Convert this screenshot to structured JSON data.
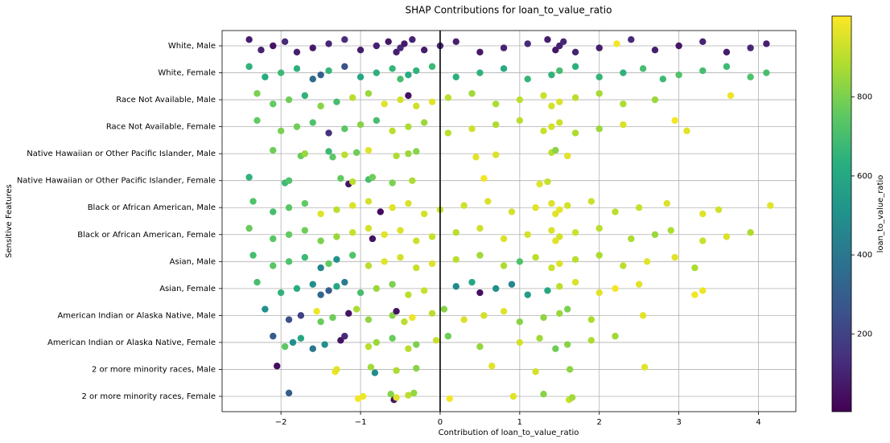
{
  "chart_data": {
    "type": "strip",
    "title": "SHAP Contributions for loan_to_value_ratio",
    "x_label": "Contribution of loan_to_value_ratio",
    "y_label": "Sensitive Features",
    "categories": [
      "White, Male",
      "White, Female",
      "Race Not Available, Male",
      "Race Not Available, Female",
      "Native Hawaiian or Other Pacific Islander, Male",
      "Native Hawaiian or Other Pacific Islander, Female",
      "Black or African American, Male",
      "Black or African American, Female",
      "Asian, Male",
      "Asian, Female",
      "American Indian or Alaska Native, Male",
      "American Indian or Alaska Native, Female",
      "2 or more minority races, Male",
      "2 or more minority races, Female"
    ],
    "groups": [
      {
        "x": [
          -2.4,
          -2.25,
          -2.1,
          -1.95,
          -1.8,
          -1.6,
          -1.4,
          -1.2,
          -1.0,
          -0.8,
          -0.65,
          -0.55,
          -0.5,
          -0.45,
          -0.35,
          -0.2,
          0,
          0.2,
          0.5,
          0.8,
          1.1,
          1.35,
          1.45,
          1.5,
          1.55,
          1.7,
          2.0,
          2.22,
          2.4,
          2.7,
          3.0,
          3.3,
          3.6,
          3.9,
          4.1
        ],
        "color_values": [
          80,
          100,
          60,
          120,
          90,
          70,
          110,
          130,
          80,
          100,
          60,
          90,
          120,
          70,
          100,
          80,
          110,
          90,
          70,
          100,
          120,
          80,
          60,
          90,
          110,
          100,
          80,
          990,
          120,
          90,
          60,
          100,
          80,
          110,
          90
        ]
      },
      {
        "x": [
          -2.4,
          -2.2,
          -2.0,
          -1.8,
          -1.6,
          -1.5,
          -1.4,
          -1.2,
          -1.0,
          -0.8,
          -0.6,
          -0.5,
          -0.4,
          -0.3,
          -0.1,
          0.2,
          0.5,
          0.8,
          1.1,
          1.4,
          1.5,
          1.7,
          2.0,
          2.3,
          2.55,
          2.8,
          3.0,
          3.3,
          3.6,
          3.9,
          4.1
        ],
        "color_values": [
          650,
          620,
          680,
          640,
          350,
          300,
          660,
          250,
          600,
          640,
          660,
          700,
          620,
          650,
          680,
          640,
          650,
          610,
          660,
          650,
          700,
          640,
          660,
          650,
          700,
          680,
          720,
          700,
          680,
          720,
          700
        ]
      },
      {
        "x": [
          -2.3,
          -2.1,
          -1.9,
          -1.7,
          -1.5,
          -1.3,
          -1.1,
          -0.9,
          -0.7,
          -0.5,
          -0.4,
          -0.3,
          -0.1,
          0.1,
          0.4,
          0.7,
          1.0,
          1.3,
          1.4,
          1.5,
          1.7,
          2.0,
          2.3,
          2.7,
          3.65
        ],
        "color_values": [
          800,
          760,
          780,
          650,
          820,
          700,
          900,
          850,
          960,
          940,
          50,
          930,
          960,
          900,
          860,
          880,
          900,
          930,
          940,
          950,
          900,
          870,
          880,
          850,
          980
        ]
      },
      {
        "x": [
          -2.3,
          -2.0,
          -1.8,
          -1.6,
          -1.4,
          -1.2,
          -1.0,
          -0.8,
          -0.6,
          -0.4,
          -0.2,
          0.1,
          0.4,
          0.7,
          1.0,
          1.3,
          1.4,
          1.5,
          1.7,
          2.0,
          2.3,
          2.95,
          3.1
        ],
        "color_values": [
          760,
          800,
          780,
          720,
          150,
          740,
          820,
          700,
          900,
          880,
          850,
          900,
          930,
          880,
          900,
          920,
          940,
          930,
          880,
          850,
          950,
          990,
          960
        ]
      },
      {
        "x": [
          -2.1,
          -1.75,
          -1.7,
          -1.4,
          -1.35,
          -1.2,
          -1.05,
          -0.9,
          -0.55,
          -0.4,
          -0.3,
          0.45,
          0.7,
          1.4,
          1.45,
          1.6
        ],
        "color_values": [
          780,
          770,
          850,
          680,
          750,
          900,
          780,
          960,
          880,
          850,
          820,
          960,
          950,
          900,
          820,
          960
        ]
      },
      {
        "x": [
          -2.4,
          -1.95,
          -1.9,
          -1.25,
          -1.15,
          -1.1,
          -0.9,
          -0.85,
          -0.6,
          -0.35,
          0.55,
          1.25,
          1.35
        ],
        "color_values": [
          650,
          680,
          720,
          760,
          50,
          900,
          700,
          780,
          800,
          880,
          990,
          960,
          920
        ]
      },
      {
        "x": [
          -2.35,
          -2.1,
          -1.9,
          -1.7,
          -1.5,
          -1.3,
          -1.1,
          -0.9,
          -0.75,
          -0.6,
          -0.4,
          -0.2,
          0,
          0.3,
          0.6,
          0.9,
          1.2,
          1.4,
          1.45,
          1.5,
          1.6,
          1.9,
          2.2,
          2.5,
          2.85,
          3.3,
          3.5,
          4.15
        ],
        "color_values": [
          720,
          700,
          740,
          760,
          960,
          900,
          950,
          940,
          30,
          960,
          950,
          940,
          920,
          930,
          950,
          940,
          960,
          950,
          960,
          970,
          940,
          930,
          900,
          920,
          950,
          960,
          940,
          960
        ]
      },
      {
        "x": [
          -2.4,
          -2.1,
          -1.9,
          -1.7,
          -1.5,
          -1.3,
          -1.1,
          -0.9,
          -0.85,
          -0.7,
          -0.5,
          -0.3,
          -0.1,
          0.2,
          0.5,
          0.8,
          1.1,
          1.4,
          1.45,
          1.5,
          1.7,
          2.0,
          2.4,
          2.7,
          2.9,
          3.3,
          3.6,
          3.9
        ],
        "color_values": [
          770,
          740,
          760,
          780,
          800,
          850,
          920,
          940,
          50,
          960,
          950,
          930,
          920,
          900,
          930,
          950,
          940,
          950,
          960,
          940,
          930,
          900,
          880,
          850,
          880,
          920,
          950,
          880
        ]
      },
      {
        "x": [
          -2.35,
          -2.1,
          -1.9,
          -1.7,
          -1.5,
          -1.4,
          -1.3,
          -1.1,
          -0.9,
          -0.7,
          -0.5,
          -0.3,
          -0.1,
          0.2,
          0.5,
          0.8,
          1.0,
          1.2,
          1.4,
          1.5,
          1.7,
          2.0,
          2.3,
          2.6,
          2.95,
          3.2
        ],
        "color_values": [
          700,
          740,
          720,
          680,
          450,
          760,
          500,
          720,
          900,
          960,
          940,
          920,
          950,
          900,
          860,
          880,
          720,
          900,
          930,
          950,
          900,
          880,
          900,
          960,
          960,
          880
        ]
      },
      {
        "x": [
          -2.3,
          -2.0,
          -1.8,
          -1.6,
          -1.5,
          -1.4,
          -1.3,
          -1.2,
          -1.0,
          -0.8,
          -0.6,
          -0.4,
          -0.2,
          0.2,
          0.4,
          0.5,
          0.7,
          0.9,
          1.1,
          1.35,
          1.5,
          1.7,
          2.0,
          2.2,
          2.5,
          3.2,
          3.3
        ],
        "color_values": [
          700,
          650,
          620,
          500,
          330,
          300,
          600,
          420,
          700,
          850,
          800,
          900,
          920,
          480,
          600,
          50,
          500,
          460,
          550,
          600,
          900,
          950,
          960,
          990,
          960,
          990,
          980
        ]
      },
      {
        "x": [
          -2.2,
          -1.9,
          -1.75,
          -1.55,
          -1.5,
          -1.35,
          -1.15,
          -1.05,
          -0.9,
          -0.6,
          -0.55,
          -0.45,
          -0.35,
          -0.1,
          0.05,
          0.3,
          0.55,
          0.8,
          1.0,
          1.3,
          1.5,
          1.6,
          1.9,
          2.55
        ],
        "color_values": [
          500,
          250,
          200,
          980,
          770,
          780,
          50,
          880,
          830,
          820,
          50,
          900,
          980,
          900,
          820,
          950,
          940,
          960,
          820,
          830,
          850,
          800,
          880,
          960
        ]
      },
      {
        "x": [
          -2.1,
          -1.95,
          -1.85,
          -1.75,
          -1.6,
          -1.45,
          -1.25,
          -1.2,
          -0.9,
          -0.8,
          -0.6,
          -0.4,
          -0.3,
          -0.05,
          0.1,
          0.5,
          1.0,
          1.25,
          1.45,
          1.6,
          1.9,
          2.2
        ],
        "color_values": [
          300,
          750,
          500,
          600,
          400,
          500,
          50,
          120,
          900,
          850,
          770,
          900,
          800,
          920,
          780,
          840,
          940,
          860,
          780,
          820,
          880,
          860
        ]
      },
      {
        "x": [
          -2.05,
          -1.32,
          -1.3,
          -0.87,
          -0.82,
          -0.55,
          -0.3,
          0.65,
          1.2,
          1.63,
          2.57
        ],
        "color_values": [
          40,
          980,
          960,
          860,
          480,
          880,
          820,
          960,
          940,
          830,
          960
        ]
      },
      {
        "x": [
          -1.9,
          -1.03,
          -0.97,
          -0.62,
          -0.58,
          -0.55,
          -0.4,
          -0.33,
          0.12,
          0.92,
          1.3,
          1.62,
          1.66
        ],
        "color_values": [
          300,
          990,
          980,
          820,
          50,
          960,
          900,
          840,
          990,
          960,
          820,
          920,
          860
        ]
      }
    ],
    "xlim": [
      -2.74,
      4.47
    ],
    "xticks": [
      {
        "value": -2,
        "label": "−2"
      },
      {
        "value": -1,
        "label": "−1"
      },
      0,
      1,
      2,
      3,
      4
    ],
    "grid": true,
    "vline": 0,
    "colorbar": {
      "label": "loan_to_value_ratio",
      "colormap": "viridis",
      "lim": [
        3,
        1005
      ],
      "ticks": [
        200,
        400,
        600,
        800
      ]
    }
  }
}
